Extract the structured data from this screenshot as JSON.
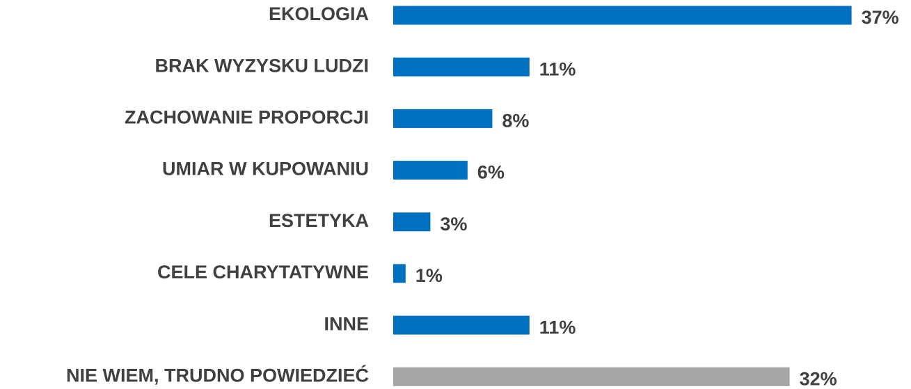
{
  "chart_data": {
    "type": "barh",
    "categories": [
      "EKOLOGIA",
      "BRAK WYZYSKU LUDZI",
      "ZACHOWANIE PROPORCJI",
      "UMIAR W KUPOWANIU",
      "ESTETYKA",
      "CELE CHARYTATYWNE",
      "INNE",
      "NIE WIEM, TRUDNO POWIEDZIEĆ"
    ],
    "values": [
      37,
      11,
      8,
      6,
      3,
      1,
      11,
      32
    ],
    "value_labels": [
      "37%",
      "11%",
      "8%",
      "6%",
      "3%",
      "1%",
      "11%",
      "32%"
    ],
    "colors": [
      "#0070c0",
      "#0070c0",
      "#0070c0",
      "#0070c0",
      "#0070c0",
      "#0070c0",
      "#0070c0",
      "#a6a6a6"
    ]
  }
}
